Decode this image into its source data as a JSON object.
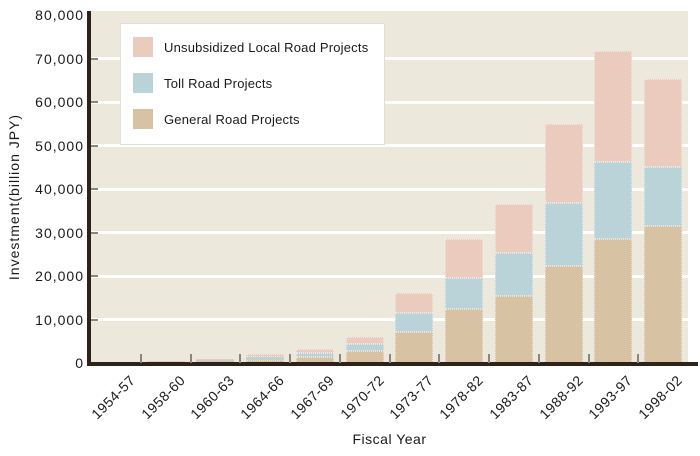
{
  "chart_data": {
    "type": "bar",
    "stacked": true,
    "title": "",
    "xlabel": "Fiscal Year",
    "ylabel": "Investment(billion JPY)",
    "categories": [
      "1954-57",
      "1958-60",
      "1960-63",
      "1964-66",
      "1967-69",
      "1970-72",
      "1973-77",
      "1978-82",
      "1983-87",
      "1988-92",
      "1993-97",
      "1998-02"
    ],
    "series": [
      {
        "name": "General Road Projects",
        "color": "#d8c2a4",
        "values": [
          200,
          350,
          600,
          800,
          1400,
          2700,
          7200,
          12350,
          15400,
          22300,
          28500,
          31500
        ]
      },
      {
        "name": "Toll Road Projects",
        "color": "#b9d3d9",
        "values": [
          40,
          50,
          120,
          600,
          900,
          1600,
          4200,
          7100,
          9800,
          14400,
          17650,
          13600
        ]
      },
      {
        "name": "Unsubsidized Local Road Projects",
        "color": "#eacbbd",
        "values": [
          60,
          100,
          280,
          700,
          950,
          1750,
          4600,
          9050,
          11350,
          18200,
          25650,
          20300
        ]
      }
    ],
    "stack_totals": [
      300,
      500,
      1000,
      2100,
      3250,
      6050,
      16000,
      28500,
      36550,
      54900,
      71800,
      65400
    ],
    "ylim": [
      0,
      80000
    ],
    "ytick_step": 10000,
    "ytick_labels": [
      "0",
      "10,000",
      "20,000",
      "30,000",
      "40,000",
      "50,000",
      "60,000",
      "70,000",
      "80,000"
    ],
    "grid": true,
    "legend_position": "upper-left",
    "legend_order": [
      2,
      1,
      0
    ],
    "colors": {
      "plot_bg": "#ece9dc",
      "grid": "#ffffff",
      "axis": "#2e2219",
      "tick": "#8a857d",
      "text": "#1a1a1a"
    }
  }
}
